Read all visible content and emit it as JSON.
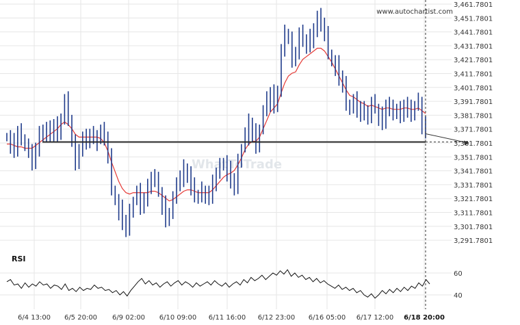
{
  "site_label": "www.autochartist.com",
  "watermark": "WhatToTrade",
  "rsi_label": "RSI",
  "colors": {
    "price": "#1e3a8a",
    "ma": "#e53935",
    "support": "#2b2b2b",
    "rsi": "#111111",
    "grid": "#e6e6e6"
  },
  "chart_data": [
    {
      "type": "line",
      "title": "",
      "y_ticks": [
        "3,461.7801",
        "3,451.7801",
        "3,441.7801",
        "3,431.7801",
        "3,421.7801",
        "3,411.7801",
        "3,401.7801",
        "3,391.7801",
        "3,381.7801",
        "3,371.7801",
        "3,361.7801",
        "3,351.7801",
        "3,341.7801",
        "3,331.7801",
        "3,321.7801",
        "3,311.7801",
        "3,301.7801",
        "3,291.7801"
      ],
      "ylim": [
        3288,
        3463
      ],
      "x_ticks": [
        "6/4 13:00",
        "6/5 20:00",
        "6/9 02:00",
        "6/10 09:00",
        "6/11 16:00",
        "6/12 23:00",
        "6/16 05:00",
        "6/17 12:00",
        "6/18 20:00"
      ],
      "current_time_label": "6/18 20:00",
      "series": [
        {
          "role": "price",
          "values": [
            3366,
            3362,
            3358,
            3370,
            3365,
            3360,
            3354,
            3350,
            3358,
            3368,
            3372,
            3366,
            3371,
            3375,
            3370,
            3380,
            3392,
            3378,
            3362,
            3350,
            3358,
            3365,
            3362,
            3368,
            3364,
            3368,
            3370,
            3366,
            3352,
            3328,
            3320,
            3314,
            3306,
            3300,
            3312,
            3320,
            3326,
            3318,
            3322,
            3330,
            3338,
            3334,
            3326,
            3318,
            3308,
            3312,
            3322,
            3330,
            3338,
            3344,
            3340,
            3330,
            3324,
            3322,
            3328,
            3326,
            3324,
            3332,
            3340,
            3345,
            3348,
            3342,
            3336,
            3330,
            3348,
            3358,
            3368,
            3376,
            3370,
            3360,
            3372,
            3384,
            3392,
            3398,
            3390,
            3400,
            3428,
            3440,
            3436,
            3424,
            3428,
            3440,
            3436,
            3430,
            3438,
            3445,
            3452,
            3448,
            3440,
            3426,
            3420,
            3418,
            3410,
            3404,
            3390,
            3386,
            3392,
            3388,
            3384,
            3386,
            3380,
            3390,
            3386,
            3382,
            3378,
            3390,
            3386,
            3382,
            3386,
            3384,
            3390,
            3386,
            3382,
            3388,
            3392,
            3376,
            3372
          ]
        },
        {
          "role": "moving-average",
          "values": [
            3361,
            3361,
            3360,
            3359,
            3359,
            3358,
            3358,
            3358,
            3360,
            3362,
            3364,
            3366,
            3368,
            3370,
            3372,
            3375,
            3377,
            3375,
            3372,
            3368,
            3366,
            3366,
            3366,
            3366,
            3366,
            3366,
            3365,
            3362,
            3356,
            3348,
            3341,
            3334,
            3329,
            3326,
            3325,
            3326,
            3326,
            3326,
            3326,
            3326,
            3327,
            3327,
            3326,
            3324,
            3322,
            3320,
            3321,
            3323,
            3325,
            3327,
            3328,
            3328,
            3327,
            3326,
            3326,
            3326,
            3326,
            3328,
            3331,
            3334,
            3337,
            3339,
            3340,
            3342,
            3346,
            3351,
            3357,
            3361,
            3363,
            3363,
            3366,
            3372,
            3378,
            3384,
            3387,
            3390,
            3398,
            3405,
            3410,
            3412,
            3413,
            3418,
            3422,
            3424,
            3426,
            3428,
            3430,
            3430,
            3428,
            3424,
            3420,
            3415,
            3410,
            3405,
            3400,
            3396,
            3395,
            3393,
            3391,
            3390,
            3388,
            3389,
            3388,
            3387,
            3386,
            3387,
            3387,
            3386,
            3386,
            3386,
            3387,
            3387,
            3386,
            3386,
            3387,
            3385,
            3383
          ]
        }
      ],
      "support_level": 3362.5,
      "forecast_target": 3361.8
    },
    {
      "type": "line",
      "title": "RSI",
      "y_ticks": [
        60,
        40
      ],
      "ylim": [
        30,
        70
      ],
      "series": [
        {
          "role": "rsi",
          "values": [
            52,
            54,
            49,
            50,
            46,
            51,
            47,
            50,
            48,
            52,
            49,
            50,
            46,
            49,
            48,
            45,
            50,
            44,
            46,
            43,
            47,
            44,
            46,
            45,
            49,
            46,
            47,
            44,
            45,
            42,
            44,
            40,
            43,
            39,
            44,
            48,
            52,
            55,
            50,
            53,
            49,
            51,
            47,
            50,
            52,
            48,
            51,
            53,
            49,
            52,
            50,
            47,
            51,
            48,
            50,
            52,
            49,
            53,
            50,
            48,
            51,
            47,
            50,
            52,
            49,
            54,
            51,
            56,
            53,
            55,
            58,
            54,
            57,
            60,
            58,
            62,
            59,
            63,
            57,
            60,
            56,
            58,
            54,
            56,
            52,
            55,
            51,
            53,
            50,
            48,
            46,
            49,
            45,
            47,
            44,
            46,
            42,
            44,
            40,
            38,
            41,
            37,
            40,
            44,
            41,
            45,
            42,
            46,
            43,
            47,
            44,
            48,
            46,
            51,
            48,
            54,
            50
          ]
        }
      ]
    }
  ]
}
